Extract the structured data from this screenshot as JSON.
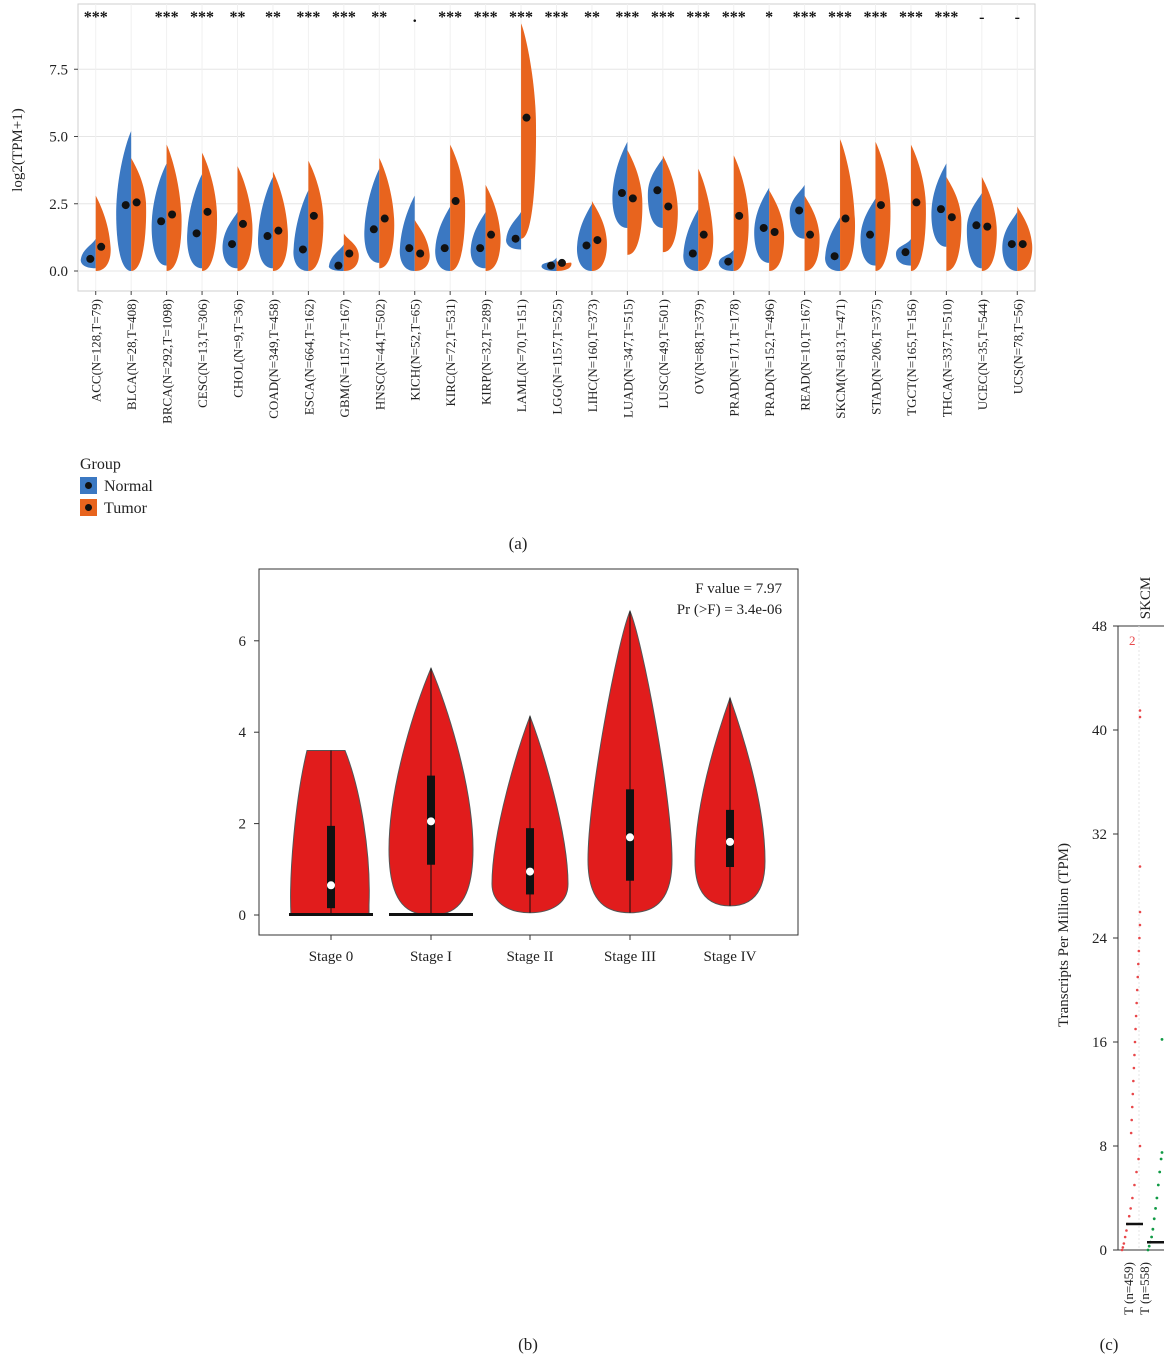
{
  "panels": {
    "a": "(a)",
    "b": "(b)",
    "c": "(c)"
  },
  "colors": {
    "normal": "#3b78c2",
    "tumor": "#e8641e",
    "violin_red": "#e11c1c",
    "panel_c_tumor": "#e8474a",
    "panel_c_normal": "#109a45"
  },
  "chart_data": [
    {
      "type": "violin",
      "panel": "a",
      "title": "",
      "xlabel": "",
      "ylabel": "log2(TPM+1)",
      "ylim": [
        -0.5,
        9.5
      ],
      "yticks": [
        0.0,
        2.5,
        5.0,
        7.5
      ],
      "ytick_labels": [
        "0.0",
        "2.5",
        "5.0",
        "7.5"
      ],
      "grid": true,
      "legend": {
        "title": "Group",
        "position": "bottom-left",
        "entries": [
          "Normal",
          "Tumor"
        ]
      },
      "categories": [
        "ACC(N=128,T=79)",
        "BLCA(N=28,T=408)",
        "BRCA(N=292,T=1098)",
        "CESC(N=13,T=306)",
        "CHOL(N=9,T=36)",
        "COAD(N=349,T=458)",
        "ESCA(N=664,T=162)",
        "GBM(N=1157,T=167)",
        "HNSC(N=44,T=502)",
        "KICH(N=52,T=65)",
        "KIRC(N=72,T=531)",
        "KIRP(N=32,T=289)",
        "LAML(N=70,T=151)",
        "LGG(N=1157,T=525)",
        "LIHC(N=160,T=373)",
        "LUAD(N=347,T=515)",
        "LUSC(N=49,T=501)",
        "OV(N=88,T=379)",
        "PRAD(N=171,T=178)",
        "PRAD(N=152,T=496)",
        "READ(N=10,T=167)",
        "SKCM(N=813,T=471)",
        "STAD(N=206,T=375)",
        "TGCT(N=165,T=156)",
        "THCA(N=337,T=510)",
        "UCEC(N=35,T=544)",
        "UCS(N=78,T=56)"
      ],
      "significance": [
        "***",
        "",
        "***",
        "***",
        "**",
        "**",
        "***",
        "***",
        "**",
        ".",
        "***",
        "***",
        "***",
        "***",
        "**",
        "***",
        "***",
        "***",
        "***",
        "*",
        "***",
        "***",
        "***",
        "***",
        "***",
        "-",
        "-"
      ],
      "series": [
        {
          "name": "Normal",
          "medians": [
            0.45,
            2.45,
            1.85,
            1.4,
            1.0,
            1.3,
            0.8,
            0.2,
            1.55,
            0.85,
            0.85,
            0.85,
            1.2,
            0.2,
            0.95,
            2.9,
            3.0,
            0.65,
            0.35,
            1.6,
            2.25,
            0.55,
            1.35,
            0.7,
            2.3,
            1.7,
            1.0
          ],
          "max": [
            1.2,
            5.2,
            4.0,
            3.6,
            2.2,
            3.5,
            3.0,
            1.0,
            3.8,
            2.8,
            2.4,
            2.2,
            2.2,
            0.5,
            2.5,
            4.8,
            4.2,
            2.3,
            0.8,
            3.1,
            3.2,
            2.0,
            2.7,
            1.2,
            4.0,
            2.9,
            2.2
          ],
          "min": [
            0.1,
            0.0,
            0.2,
            0.1,
            0.1,
            0.1,
            0.0,
            0.0,
            0.3,
            0.0,
            0.0,
            0.1,
            0.8,
            0.0,
            0.0,
            1.6,
            1.6,
            0.0,
            0.0,
            0.3,
            1.2,
            0.0,
            0.2,
            0.2,
            0.9,
            0.1,
            0.0
          ]
        },
        {
          "name": "Tumor",
          "medians": [
            0.9,
            2.55,
            2.1,
            2.2,
            1.75,
            1.5,
            2.05,
            0.65,
            1.95,
            0.65,
            2.6,
            1.35,
            5.7,
            0.3,
            1.15,
            2.7,
            2.4,
            1.35,
            2.05,
            1.45,
            1.35,
            1.95,
            2.45,
            2.55,
            2.0,
            1.65,
            1.0
          ],
          "max": [
            2.8,
            4.2,
            4.7,
            4.4,
            3.9,
            3.7,
            4.1,
            1.4,
            4.2,
            1.9,
            4.7,
            3.2,
            9.2,
            0.4,
            2.6,
            4.5,
            4.3,
            3.8,
            4.3,
            3.0,
            2.8,
            4.9,
            4.8,
            4.7,
            3.5,
            3.5,
            2.4
          ],
          "min": [
            0.0,
            0.0,
            0.0,
            0.0,
            0.0,
            0.0,
            0.0,
            0.0,
            0.1,
            0.0,
            0.0,
            0.0,
            1.2,
            0.0,
            0.0,
            0.6,
            0.7,
            0.0,
            0.0,
            0.0,
            0.0,
            0.0,
            0.0,
            0.0,
            0.0,
            0.0,
            0.0
          ]
        }
      ]
    },
    {
      "type": "violin",
      "panel": "b",
      "title": "",
      "xlabel": "",
      "ylabel": "",
      "ylim": [
        -0.3,
        7.5
      ],
      "yticks": [
        0,
        2,
        4,
        6
      ],
      "categories": [
        "Stage 0",
        "Stage I",
        "Stage II",
        "Stage III",
        "Stage IV"
      ],
      "annotations": [
        "F value = 7.97",
        "Pr (>F) = 3.4e-06"
      ],
      "max": [
        3.6,
        5.4,
        4.35,
        6.65,
        4.75
      ],
      "q3": [
        1.95,
        3.05,
        1.9,
        2.75,
        2.3
      ],
      "median": [
        0.65,
        2.05,
        0.95,
        1.7,
        1.6
      ],
      "q1": [
        0.15,
        1.1,
        0.45,
        0.75,
        1.05
      ],
      "min": [
        0.0,
        0.0,
        0.05,
        0.05,
        0.2
      ]
    },
    {
      "type": "scatter",
      "panel": "c",
      "title": "SKCM",
      "ylabel": "Transcripts Per Million (TPM)",
      "ylim": [
        0,
        48
      ],
      "yticks": [
        0,
        8,
        16,
        24,
        32,
        40,
        48
      ],
      "categories": [
        "T (n=459)",
        "T (n=558)"
      ],
      "annotations": [
        "2"
      ],
      "series": [
        {
          "name": "T (n=459)",
          "median": 2.0,
          "max": 41.5
        },
        {
          "name": "T (n=558)",
          "median": 0.6,
          "max": 16.2
        }
      ]
    }
  ]
}
